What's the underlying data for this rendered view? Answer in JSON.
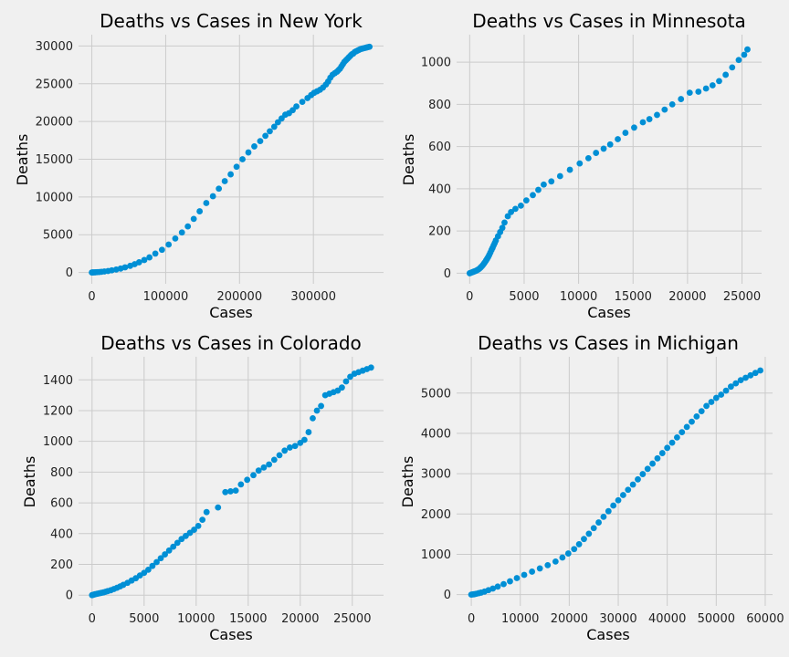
{
  "colors": {
    "background": "#f0f0f0",
    "grid": "#cbcbcb",
    "marker": "#008fd5"
  },
  "chart_data": [
    {
      "type": "scatter",
      "title": "Deaths vs Cases in New York",
      "xlabel": "Cases",
      "ylabel": "Deaths",
      "xlim": [
        -18000,
        395000
      ],
      "ylim": [
        -1500,
        31500
      ],
      "xticks": [
        0,
        100000,
        200000,
        300000
      ],
      "yticks": [
        0,
        5000,
        10000,
        15000,
        20000,
        25000,
        30000
      ],
      "grid": true,
      "x": [
        0,
        1000,
        2500,
        4500,
        7000,
        10000,
        13000,
        17000,
        22000,
        27000,
        33000,
        39000,
        45000,
        52000,
        58000,
        64000,
        71000,
        78000,
        86000,
        95000,
        104000,
        113000,
        122000,
        130000,
        138000,
        146000,
        155000,
        164000,
        172000,
        180000,
        188000,
        196000,
        204000,
        212000,
        220000,
        228000,
        235000,
        241000,
        247000,
        252000,
        257000,
        262000,
        267000,
        272000,
        277000,
        285000,
        292000,
        297000,
        301000,
        305000,
        309000,
        313000,
        317000,
        320000,
        323000,
        326000,
        329000,
        332000,
        334000,
        336000,
        338000,
        340000,
        342000,
        344000,
        346000,
        348000,
        350000,
        352000,
        354000,
        356000,
        358000,
        360000,
        362000,
        364000,
        366000,
        368000,
        370000,
        372000,
        374000,
        376000
      ],
      "y": [
        0,
        5,
        10,
        20,
        40,
        60,
        90,
        130,
        190,
        280,
        390,
        520,
        680,
        880,
        1100,
        1350,
        1650,
        2000,
        2500,
        3000,
        3700,
        4500,
        5300,
        6100,
        7100,
        8100,
        9200,
        10100,
        11100,
        12100,
        13000,
        14000,
        15000,
        15900,
        16700,
        17400,
        18100,
        18700,
        19300,
        19900,
        20400,
        20900,
        21100,
        21500,
        22000,
        22600,
        23100,
        23500,
        23800,
        24000,
        24200,
        24500,
        24900,
        25300,
        25800,
        26200,
        26400,
        26600,
        26800,
        27000,
        27300,
        27600,
        27900,
        28100,
        28300,
        28500,
        28700,
        28900,
        29000,
        29200,
        29300,
        29400,
        29500,
        29600,
        29650,
        29700,
        29750,
        29800,
        29850,
        29900
      ]
    },
    {
      "type": "scatter",
      "title": "Deaths vs Cases in Minnesota",
      "xlabel": "Cases",
      "ylabel": "Deaths",
      "xlim": [
        -1200,
        26800
      ],
      "ylim": [
        -50,
        1130
      ],
      "xticks": [
        0,
        5000,
        10000,
        15000,
        20000,
        25000
      ],
      "yticks": [
        0,
        200,
        400,
        600,
        800,
        1000
      ],
      "grid": true,
      "x": [
        0,
        100,
        200,
        300,
        400,
        500,
        600,
        700,
        800,
        900,
        1000,
        1100,
        1200,
        1300,
        1400,
        1500,
        1600,
        1700,
        1800,
        1900,
        2000,
        2100,
        2200,
        2300,
        2400,
        2600,
        2800,
        3000,
        3200,
        3500,
        3800,
        4200,
        4700,
        5200,
        5800,
        6300,
        6800,
        7500,
        8300,
        9200,
        10100,
        10900,
        11600,
        12300,
        12900,
        13600,
        14300,
        15100,
        15900,
        16500,
        17200,
        17900,
        18600,
        19400,
        20200,
        21000,
        21700,
        22300,
        22900,
        23500,
        24100,
        24700,
        25200,
        25500
      ],
      "y": [
        0,
        2,
        4,
        6,
        8,
        10,
        12,
        15,
        18,
        22,
        27,
        32,
        38,
        45,
        52,
        60,
        68,
        77,
        87,
        98,
        110,
        120,
        132,
        143,
        155,
        175,
        195,
        215,
        240,
        270,
        290,
        305,
        320,
        345,
        370,
        395,
        420,
        435,
        460,
        490,
        520,
        545,
        570,
        590,
        610,
        635,
        665,
        690,
        715,
        730,
        750,
        775,
        800,
        825,
        855,
        860,
        875,
        890,
        910,
        940,
        975,
        1010,
        1035,
        1060
      ]
    },
    {
      "type": "scatter",
      "title": "Deaths vs Cases in Colorado",
      "xlabel": "Cases",
      "ylabel": "Deaths",
      "xlim": [
        -1300,
        28000
      ],
      "ylim": [
        -70,
        1550
      ],
      "xticks": [
        0,
        5000,
        10000,
        15000,
        20000,
        25000
      ],
      "yticks": [
        0,
        200,
        400,
        600,
        800,
        1000,
        1200,
        1400
      ],
      "grid": true,
      "x": [
        0,
        100,
        200,
        300,
        500,
        700,
        900,
        1100,
        1300,
        1500,
        1800,
        2100,
        2400,
        2700,
        3000,
        3400,
        3800,
        4200,
        4600,
        5000,
        5400,
        5800,
        6200,
        6600,
        7000,
        7400,
        7800,
        8200,
        8600,
        9000,
        9400,
        9800,
        10200,
        10600,
        11000,
        12100,
        12800,
        13300,
        13800,
        14300,
        14900,
        15500,
        16000,
        16500,
        17000,
        17500,
        18000,
        18500,
        19000,
        19500,
        20000,
        20400,
        20800,
        21200,
        21600,
        22000,
        22400,
        22800,
        23200,
        23600,
        24000,
        24400,
        24800,
        25200,
        25600,
        26000,
        26400,
        26800
      ],
      "y": [
        0,
        2,
        4,
        6,
        9,
        12,
        15,
        18,
        22,
        26,
        32,
        40,
        48,
        57,
        67,
        80,
        95,
        110,
        128,
        145,
        165,
        190,
        215,
        240,
        265,
        290,
        315,
        340,
        365,
        385,
        405,
        425,
        450,
        490,
        540,
        570,
        670,
        675,
        680,
        720,
        750,
        780,
        810,
        830,
        850,
        880,
        910,
        940,
        960,
        970,
        990,
        1010,
        1060,
        1150,
        1200,
        1230,
        1300,
        1310,
        1320,
        1330,
        1350,
        1390,
        1420,
        1440,
        1450,
        1460,
        1470,
        1480
      ]
    },
    {
      "type": "scatter",
      "title": "Deaths vs Cases in Michigan",
      "xlabel": "Cases",
      "ylabel": "Deaths",
      "xlim": [
        -3000,
        61500
      ],
      "ylim": [
        -280,
        5900
      ],
      "xticks": [
        0,
        10000,
        20000,
        30000,
        40000,
        50000,
        60000
      ],
      "yticks": [
        0,
        1000,
        2000,
        3000,
        4000,
        5000
      ],
      "grid": true,
      "x": [
        0,
        300,
        600,
        1000,
        1500,
        2000,
        2700,
        3500,
        4400,
        5400,
        6600,
        7900,
        9300,
        10800,
        12400,
        14000,
        15600,
        17200,
        18600,
        19800,
        21000,
        22000,
        23000,
        24000,
        25000,
        26000,
        27000,
        28000,
        29000,
        30000,
        31000,
        32000,
        33000,
        34000,
        35000,
        36000,
        37000,
        38000,
        39000,
        40000,
        41000,
        42000,
        43000,
        44000,
        45000,
        46000,
        47000,
        48000,
        49000,
        50000,
        51000,
        52000,
        53000,
        54000,
        55000,
        56000,
        57000,
        58000,
        59000
      ],
      "y": [
        0,
        5,
        10,
        20,
        35,
        50,
        75,
        110,
        150,
        200,
        260,
        330,
        410,
        490,
        570,
        650,
        730,
        820,
        920,
        1020,
        1130,
        1250,
        1380,
        1510,
        1650,
        1790,
        1930,
        2070,
        2210,
        2340,
        2470,
        2600,
        2730,
        2860,
        2990,
        3120,
        3250,
        3380,
        3510,
        3640,
        3770,
        3900,
        4030,
        4160,
        4290,
        4420,
        4550,
        4680,
        4780,
        4880,
        4960,
        5060,
        5160,
        5240,
        5320,
        5380,
        5440,
        5500,
        5560
      ]
    }
  ]
}
